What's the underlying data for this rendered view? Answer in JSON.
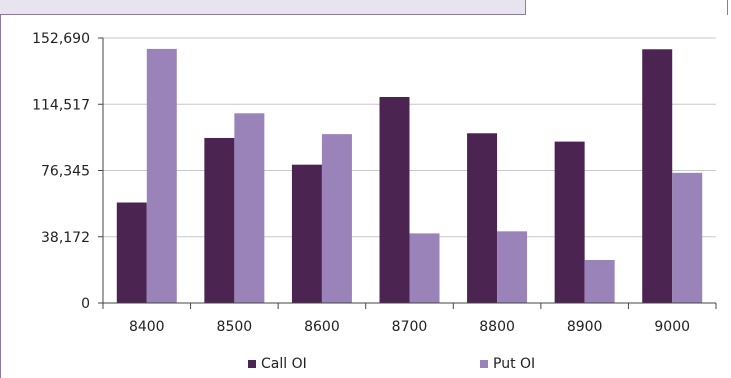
{
  "chart_data": {
    "type": "bar",
    "categories": [
      "8400",
      "8500",
      "8600",
      "8700",
      "8800",
      "8900",
      "9000"
    ],
    "series": [
      {
        "name": "Call OI",
        "color": "#4c2452",
        "values": [
          57900,
          95100,
          79700,
          118700,
          97800,
          93000,
          146200
        ]
      },
      {
        "name": "Put OI",
        "color": "#9a83b8",
        "values": [
          146400,
          109300,
          97300,
          40100,
          41300,
          24800,
          75000
        ]
      }
    ],
    "y_ticks": [
      "0",
      "38,172",
      "76,345",
      "114,517",
      "152,690"
    ],
    "ylim": [
      0,
      152690
    ],
    "grid": true,
    "legend": "bottom"
  }
}
